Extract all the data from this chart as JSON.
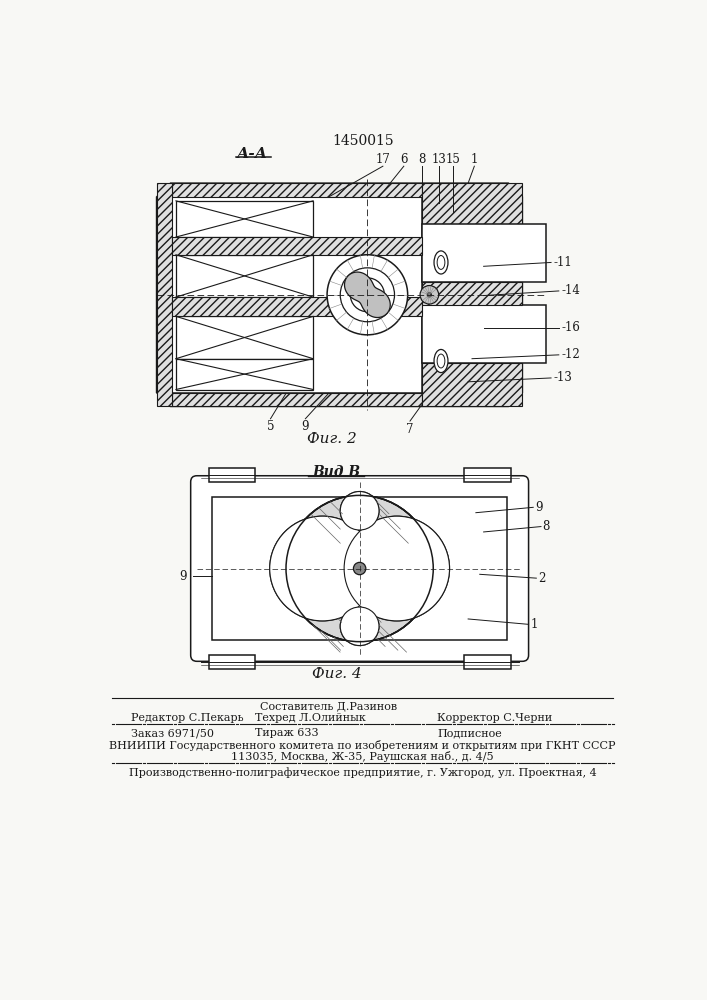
{
  "patent_number": "1450015",
  "fig2_label": "А-А",
  "fig4_label": "Вид В",
  "fig2_caption": "Фиг. 2",
  "fig4_caption": "Фиг. 4",
  "footer_line1_center": "Составитель Д.Разинов",
  "footer_line2_col1": "Редактор С.Пекарь",
  "footer_line2_col2": "Техред Л.Олийнык",
  "footer_line2_col3": "Корректор С.Черни",
  "footer_line3_col1": "Заказ 6971/50",
  "footer_line3_col2": "Тираж 633",
  "footer_line3_col3": "Подписное",
  "footer_line4": "ВНИИПИ Государственного комитета по изобретениям и открытиям при ГКНТ СССР",
  "footer_line5": "113035, Москва, Ж-35, Раушская наб., д. 4/5",
  "footer_line6": "Производственно-полиграфическое предприятие, г. Ужгород, ул. Проектная, 4",
  "bg_color": "#f8f8f5",
  "dc": "#1a1a1a"
}
